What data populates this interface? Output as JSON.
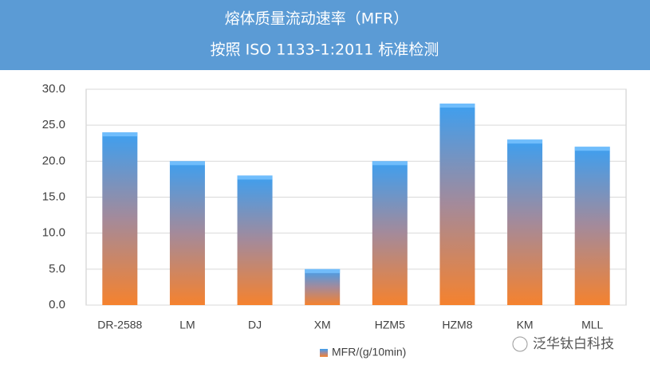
{
  "chart_data": {
    "type": "bar",
    "title": "熔体质量流动速率（MFR）",
    "subtitle": "按照 ISO 1133-1:2011 标准检测",
    "categories": [
      "DR-2588",
      "LM",
      "DJ",
      "XM",
      "HZM5",
      "HZM8",
      "KM",
      "MLL"
    ],
    "series": [
      {
        "name": "MFR/(g/10min)",
        "gradient": [
          "#3d9ff0",
          "#f5822e"
        ],
        "values": [
          24,
          20,
          18,
          5,
          20,
          28,
          23,
          22
        ]
      }
    ],
    "ylim": [
      0,
      30
    ],
    "yticks": [
      {
        "value": 0,
        "label": "0.0"
      },
      {
        "value": 5,
        "label": "5.0"
      },
      {
        "value": 10,
        "label": "10.0"
      },
      {
        "value": 15,
        "label": "15.0"
      },
      {
        "value": 20,
        "label": "20.0"
      },
      {
        "value": 25,
        "label": "25.0"
      },
      {
        "value": 30,
        "label": "30.0"
      }
    ],
    "grid": true,
    "legend": "bottom",
    "watermark": "泛华钛白科技"
  }
}
